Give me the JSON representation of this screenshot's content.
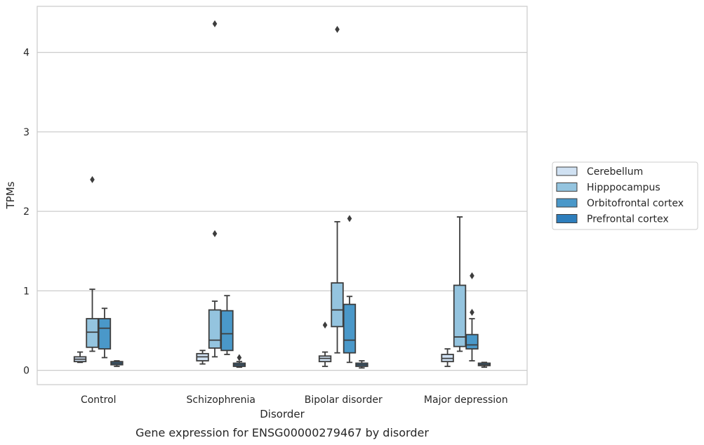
{
  "chart_data": {
    "type": "box",
    "caption": "Gene expression for ENSG00000279467 by disorder",
    "xlabel": "Disorder",
    "ylabel": "TPMs",
    "ylim": [
      -0.18,
      4.58
    ],
    "yticks": [
      0,
      1,
      2,
      3,
      4
    ],
    "grid": true,
    "legend_position": "right",
    "categories": [
      "Control",
      "Schizophrenia",
      "Bipolar disorder",
      "Major depression"
    ],
    "series": [
      {
        "name": "Cerebellum",
        "color": "#d0e1f2",
        "boxes": [
          {
            "whislo": 0.1,
            "q1": 0.11,
            "med": 0.14,
            "q3": 0.17,
            "whishi": 0.23,
            "fliers": []
          },
          {
            "whislo": 0.08,
            "q1": 0.12,
            "med": 0.17,
            "q3": 0.21,
            "whishi": 0.25,
            "fliers": []
          },
          {
            "whislo": 0.05,
            "q1": 0.11,
            "med": 0.15,
            "q3": 0.18,
            "whishi": 0.23,
            "fliers": [
              0.57
            ]
          },
          {
            "whislo": 0.05,
            "q1": 0.11,
            "med": 0.15,
            "q3": 0.2,
            "whishi": 0.27,
            "fliers": []
          }
        ]
      },
      {
        "name": "Hipppocampus",
        "color": "#94c4df",
        "boxes": [
          {
            "whislo": 0.24,
            "q1": 0.29,
            "med": 0.48,
            "q3": 0.65,
            "whishi": 1.02,
            "fliers": [
              2.4
            ]
          },
          {
            "whislo": 0.17,
            "q1": 0.28,
            "med": 0.38,
            "q3": 0.76,
            "whishi": 0.87,
            "fliers": [
              1.72,
              4.36
            ]
          },
          {
            "whislo": 0.22,
            "q1": 0.55,
            "med": 0.76,
            "q3": 1.1,
            "whishi": 1.87,
            "fliers": [
              4.29
            ]
          },
          {
            "whislo": 0.24,
            "q1": 0.3,
            "med": 0.42,
            "q3": 1.07,
            "whishi": 1.93,
            "fliers": []
          }
        ]
      },
      {
        "name": "Orbitofrontal cortex",
        "color": "#4a98c9",
        "boxes": [
          {
            "whislo": 0.16,
            "q1": 0.27,
            "med": 0.53,
            "q3": 0.65,
            "whishi": 0.78,
            "fliers": []
          },
          {
            "whislo": 0.2,
            "q1": 0.25,
            "med": 0.46,
            "q3": 0.75,
            "whishi": 0.94,
            "fliers": []
          },
          {
            "whislo": 0.1,
            "q1": 0.22,
            "med": 0.38,
            "q3": 0.83,
            "whishi": 0.93,
            "fliers": [
              1.91
            ]
          },
          {
            "whislo": 0.12,
            "q1": 0.27,
            "med": 0.32,
            "q3": 0.45,
            "whishi": 0.65,
            "fliers": [
              0.73,
              1.19
            ]
          }
        ]
      },
      {
        "name": "Prefrontal cortex",
        "color": "#2e7ebc",
        "boxes": [
          {
            "whislo": 0.05,
            "q1": 0.07,
            "med": 0.09,
            "q3": 0.11,
            "whishi": 0.12,
            "fliers": []
          },
          {
            "whislo": 0.04,
            "q1": 0.05,
            "med": 0.07,
            "q3": 0.09,
            "whishi": 0.11,
            "fliers": [
              0.16
            ]
          },
          {
            "whislo": 0.03,
            "q1": 0.05,
            "med": 0.07,
            "q3": 0.09,
            "whishi": 0.12,
            "fliers": []
          },
          {
            "whislo": 0.04,
            "q1": 0.06,
            "med": 0.07,
            "q3": 0.09,
            "whishi": 0.1,
            "fliers": []
          }
        ]
      }
    ]
  }
}
